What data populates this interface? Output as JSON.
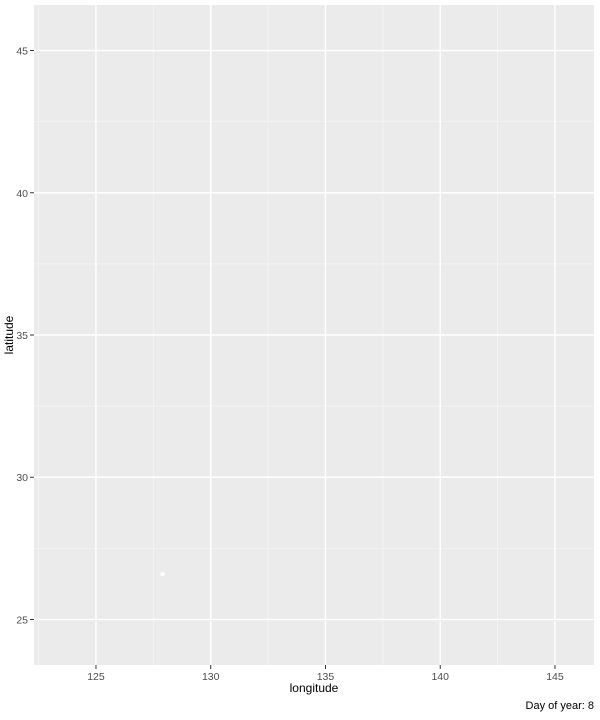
{
  "chart_data": {
    "type": "scatter",
    "title": "",
    "xlabel": "longitude",
    "ylabel": "latitude",
    "caption": "Day of year: 8",
    "xlim": [
      122.3,
      146.7
    ],
    "ylim": [
      23.4,
      46.6
    ],
    "x_ticks": [
      125,
      130,
      135,
      140,
      145
    ],
    "y_ticks": [
      25,
      30,
      35,
      40,
      45
    ],
    "x_tick_labels": [
      "125",
      "130",
      "135",
      "140",
      "145"
    ],
    "y_tick_labels": [
      "25",
      "30",
      "35",
      "40",
      "45"
    ],
    "grid": true,
    "legend": "none",
    "points": [
      {
        "x": 127.9,
        "y": 26.6
      }
    ],
    "colors": {
      "panel_background": "#ebebeb",
      "grid_major": "#ffffff",
      "grid_minor": "#f5f5f5",
      "point": "#ffffff",
      "tick_label": "#4d4d4d",
      "axis_title": "#000000"
    }
  }
}
